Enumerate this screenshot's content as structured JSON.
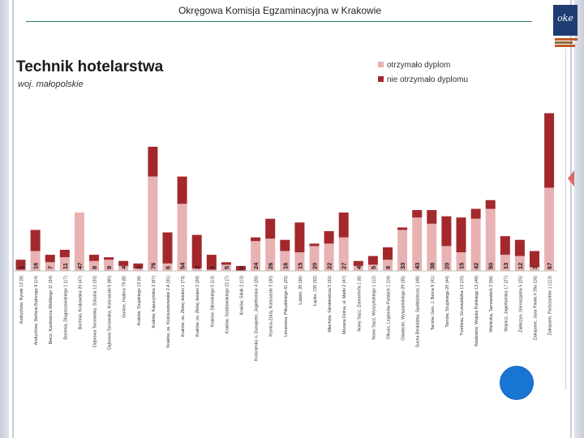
{
  "slide": {
    "header": "Okręgowa Komisja Egzaminacyjna w Krakowie",
    "logo_text": "oke"
  },
  "chart_data": {
    "type": "bar",
    "stacked": true,
    "title": "Technik hotelarstwa",
    "subtitle": "woj. małopolskie",
    "legend": [
      {
        "label": "otrzymało dyplom",
        "color": "#e8b2b3"
      },
      {
        "label": "nie otrzymało dyplomu",
        "color": "#a3282c"
      }
    ],
    "categories": [
      "Andrychów, Rynek 12 (9)",
      "Andrychów, Stefana Batorego 9 (14)",
      "Biecz, Kazimierza Wielkiego 11 (34)",
      "Bochnia, Długoszowskiego 1 (17)",
      "Bochnia, Krakowska 20 (47)",
      "Dąbrowa Tarnowska, Szkolna 12 (33)",
      "Dąbrowa Tarnowska, Kościuszki 5 (80)",
      "Gorlice, Hallera 79 (8)",
      "Kraków, Szujskiego 13 (6)",
      "Kraków, Kapucyńska 2 (67)",
      "Kraków, os. Kościuszkowskie 2 A (31)",
      "Kraków, os. Złotej Jesieni 1 (73)",
      "Kraków, os. Złotej Jesieni 2 (29)",
      "Kraków, Sikorskiego 5 (13)",
      "Kraków, Szablowskiego 22 (7)",
      "Kraków, Silnik 2 (13)",
      "Krościenko n. Dunajcem, Jagiellońska 4 (26)",
      "Krynica-Zdrój, Kościuszki 3 (30)",
      "Limanowa, Piłsudskiego 61 (25)",
      "Lubień, 20 (36)",
      "Łącko, 155 (32)",
      "Miechów, Sienkiewicza 5 (32)",
      "Mszana Dolna, ul. Matki 2 (47)",
      "Nowy Sącz, Zamenhofa 1 (8)",
      "Nowy Sącz, Wyszyńskiego 1 (12)",
      "Olkusz, Legionów Polskich 1 (19)",
      "Oświęcim, Wyspiańskiego 29 (35)",
      "Sucha Beskidzka, Spółdzielcza 1 (48)",
      "Tarnów, Gen. J. Bema 9 (41)",
      "Tarnów, Szujskiego 20 (44)",
      "Trzebinia, Grunwaldzka 12 (10)",
      "Wadowice, Wojska Polskiego 13 (49)",
      "Wieliczka, Tarnowskich 2 (56)",
      "Wojnicz, Jagiellońska 17 (27)",
      "Zakliczyn, Gimnazjalna 5 (25)",
      "Zakopane, Jana Pawła II 26a (16)",
      "Zakopane, Partyzantów 1 (113)"
    ],
    "bar_labels": [
      "1",
      "16",
      "7",
      "11",
      "47",
      "8",
      "9",
      "4",
      "2",
      "76",
      "6",
      "54",
      "2",
      "1",
      "5",
      "0",
      "24",
      "26",
      "16",
      "15",
      "20",
      "22",
      "27",
      "4",
      "5",
      "9",
      "33",
      "43",
      "38",
      "20",
      "15",
      "42",
      "50",
      "13",
      "12",
      "3",
      "67"
    ],
    "series": [
      {
        "name": "otrzymało dyplom",
        "values": [
          1,
          16,
          7,
          11,
          47,
          8,
          9,
          4,
          2,
          76,
          6,
          54,
          2,
          1,
          5,
          0,
          24,
          26,
          16,
          15,
          20,
          22,
          27,
          4,
          5,
          9,
          33,
          43,
          38,
          20,
          15,
          42,
          50,
          13,
          12,
          3,
          67
        ]
      },
      {
        "name": "nie otrzymało dyplomu",
        "values": [
          8,
          17,
          6,
          6,
          0,
          5,
          2,
          4,
          4,
          24,
          25,
          22,
          27,
          12,
          2,
          4,
          3,
          16,
          9,
          24,
          2,
          10,
          20,
          4,
          7,
          10,
          2,
          6,
          11,
          24,
          28,
          8,
          7,
          15,
          13,
          13,
          60
        ]
      }
    ],
    "ylim": [
      0,
      145
    ],
    "xlabel": "",
    "ylabel": ""
  }
}
